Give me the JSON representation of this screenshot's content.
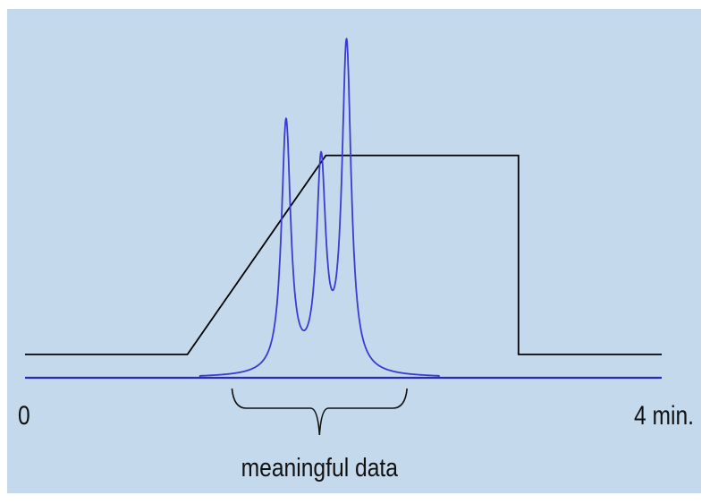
{
  "chart_data": {
    "type": "line",
    "title": "",
    "xlabel": "",
    "ylabel": "",
    "xlim": [
      0,
      4
    ],
    "ylim": [
      0,
      1
    ],
    "grid": false,
    "legend": "none",
    "background_color": "#c5d9ec",
    "x_tick_labels": [
      {
        "x": 0,
        "label": "0"
      },
      {
        "x": 4,
        "label": "4 min."
      }
    ],
    "series": [
      {
        "color": "#000000",
        "points": [
          [
            0,
            0.08
          ],
          [
            1.02,
            0.08
          ],
          [
            1.89,
            0.76
          ],
          [
            3.1,
            0.76
          ],
          [
            3.1,
            0.08
          ],
          [
            4,
            0.08
          ]
        ]
      },
      {
        "color": "#3b3bd4",
        "baseline": 0.0,
        "peaks": [
          {
            "x": 1.64,
            "height": 0.86
          },
          {
            "x": 1.86,
            "height": 0.7
          },
          {
            "x": 2.02,
            "height": 1.12
          }
        ],
        "range": [
          1.3,
          2.4
        ]
      }
    ],
    "annotations": [
      {
        "label": "meaningful data",
        "x_start": 1.3,
        "x_end": 2.4,
        "style": "brace"
      }
    ]
  }
}
